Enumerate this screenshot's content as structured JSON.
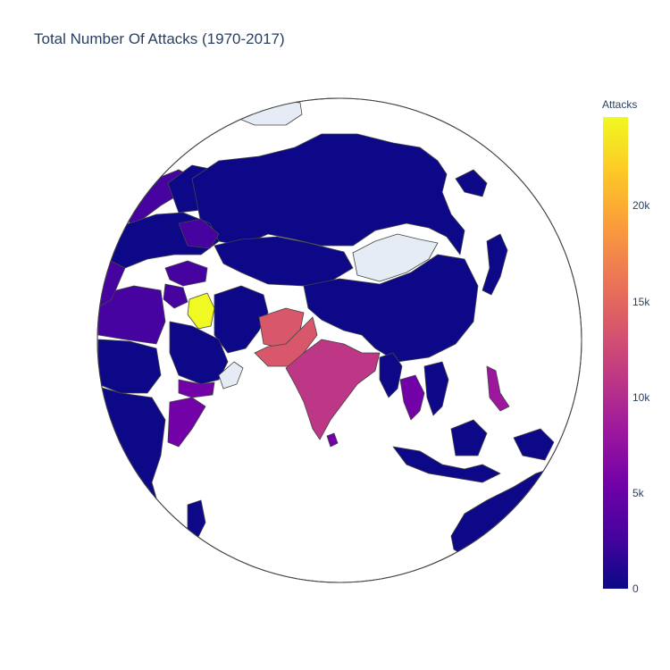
{
  "title": "Total Number Of Attacks (1970-2017)",
  "colorbar": {
    "title": "Attacks",
    "ticks": [
      "0",
      "5k",
      "10k",
      "15k",
      "20k"
    ],
    "tick_values": [
      0,
      5000,
      10000,
      15000,
      20000
    ],
    "max": 24636,
    "colorscale": [
      "#0d0887",
      "#46039f",
      "#7201a8",
      "#9c179e",
      "#bd3786",
      "#d8576b",
      "#ed7953",
      "#fb9f3a",
      "#fdca26",
      "#f0f921"
    ]
  },
  "colors": {
    "no_data": "#e5ecf6",
    "ocean": "#ffffff",
    "border": "#444444",
    "text": "#2a3f5f"
  },
  "map": {
    "projection": "orthographic",
    "regions": [
      {
        "name": "Russia",
        "level": "low"
      },
      {
        "name": "China",
        "level": "low"
      },
      {
        "name": "Mongolia",
        "level": "no data"
      },
      {
        "name": "Iraq",
        "level": "highest"
      },
      {
        "name": "Pakistan",
        "level": "high"
      },
      {
        "name": "Afghanistan",
        "level": "high"
      },
      {
        "name": "India",
        "level": "high"
      },
      {
        "name": "Philippines",
        "level": "medium"
      },
      {
        "name": "Thailand",
        "level": "medium-low"
      },
      {
        "name": "Yemen",
        "level": "medium-low"
      },
      {
        "name": "Somalia",
        "level": "medium-low"
      },
      {
        "name": "Turkey",
        "level": "medium-low"
      },
      {
        "name": "Oman",
        "level": "no data"
      },
      {
        "name": "Australia",
        "level": "low"
      }
    ]
  }
}
